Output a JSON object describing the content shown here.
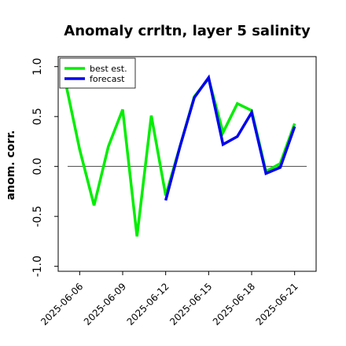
{
  "chart_data": {
    "type": "line",
    "title": "Anomaly crrltn, layer 5 salinity",
    "xlabel": "",
    "ylabel": "anom. corr.",
    "ylim": [
      -1.05,
      1.1
    ],
    "yticks": [
      -1.0,
      -0.5,
      0.0,
      0.5,
      1.0
    ],
    "ytick_labels": [
      "-1.0",
      "-0.5",
      "0.0",
      "0.5",
      "1.0"
    ],
    "xlim": [
      "2025-06-04T12:00",
      "2025-06-22T12:00"
    ],
    "xticks": [
      "2025-06-06",
      "2025-06-09",
      "2025-06-12",
      "2025-06-15",
      "2025-06-18",
      "2025-06-21"
    ],
    "xtick_labels": [
      "2025-06-06",
      "2025-06-09",
      "2025-06-12",
      "2025-06-15",
      "2025-06-18",
      "2025-06-21"
    ],
    "xtick_colors": [
      "#000000",
      "#000000",
      "#008000",
      "#000000",
      "#000000",
      "#000000"
    ],
    "hline": 0.0,
    "grid": false,
    "legend_position": "upper-left",
    "series": [
      {
        "name": "best est.",
        "color": "#00ee00",
        "x": [
          "2025-06-05",
          "2025-06-06",
          "2025-06-07",
          "2025-06-08",
          "2025-06-09",
          "2025-06-10",
          "2025-06-11",
          "2025-06-12",
          "2025-06-13",
          "2025-06-14",
          "2025-06-15",
          "2025-06-16",
          "2025-06-17",
          "2025-06-18",
          "2025-06-19",
          "2025-06-20",
          "2025-06-21"
        ],
        "values": [
          0.85,
          0.17,
          -0.39,
          0.2,
          0.57,
          -0.7,
          0.51,
          -0.29,
          0.2,
          0.7,
          0.88,
          0.34,
          0.63,
          0.56,
          -0.05,
          0.03,
          0.43
        ]
      },
      {
        "name": "forecast",
        "color": "#0000ee",
        "x": [
          "2025-06-12",
          "2025-06-13",
          "2025-06-14",
          "2025-06-15",
          "2025-06-16",
          "2025-06-17",
          "2025-06-18",
          "2025-06-19",
          "2025-06-20",
          "2025-06-21"
        ],
        "values": [
          -0.34,
          0.2,
          0.69,
          0.89,
          0.22,
          0.3,
          0.54,
          -0.07,
          -0.01,
          0.4
        ]
      }
    ]
  }
}
